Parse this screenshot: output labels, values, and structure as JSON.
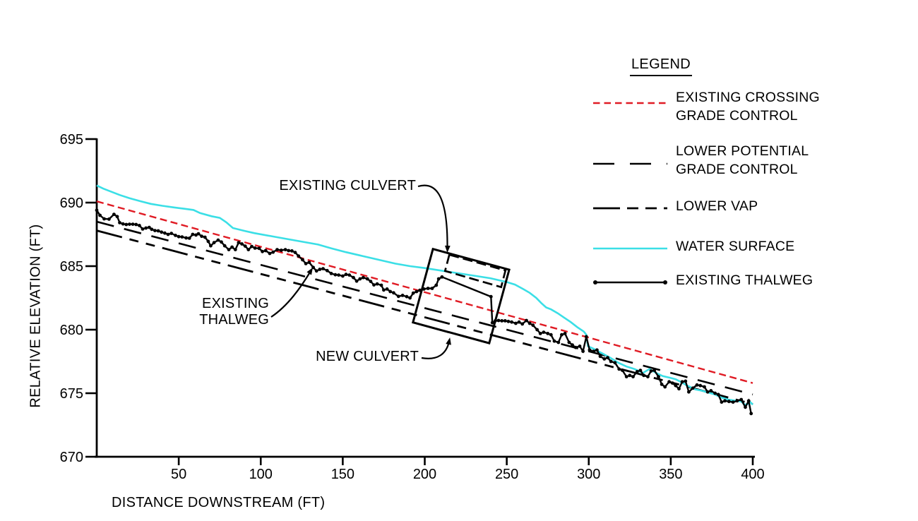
{
  "palette": {
    "red": "#e01b24",
    "cyan": "#3bdfe6",
    "ink": "#000000",
    "background": "#ffffff"
  },
  "chart_data": {
    "type": "line",
    "title": "",
    "xlabel": "DISTANCE DOWNSTREAM (FT)",
    "ylabel": "RELATIVE ELEVATION (FT)",
    "xlim": [
      0,
      400
    ],
    "ylim": [
      670,
      695
    ],
    "xticks": [
      50,
      100,
      150,
      200,
      250,
      300,
      350,
      400
    ],
    "yticks": [
      670,
      675,
      680,
      685,
      690,
      695
    ],
    "grid": false,
    "legend": {
      "title": "LEGEND",
      "position": "top-right",
      "items": [
        {
          "id": "existing-crossing-grade-control",
          "lines": [
            "EXISTING CROSSING",
            "GRADE CONTROL"
          ],
          "style": "red-dash"
        },
        {
          "id": "lower-potential-grade-control",
          "lines": [
            "LOWER POTENTIAL",
            "GRADE CONTROL"
          ],
          "style": "long-dash"
        },
        {
          "id": "lower-vap",
          "lines": [
            "LOWER VAP"
          ],
          "style": "vap-dash"
        },
        {
          "id": "water-surface",
          "lines": [
            "WATER SURFACE"
          ],
          "style": "solid-cyan"
        },
        {
          "id": "existing-thalweg",
          "lines": [
            "EXISTING THALWEG"
          ],
          "style": "solid-marker"
        }
      ]
    },
    "series": [
      {
        "id": "existing-crossing-grade-control",
        "name": "EXISTING CROSSING GRADE CONTROL",
        "style": "red-dash",
        "color": "#e01b24",
        "points": [
          [
            0,
            690.1
          ],
          [
            400,
            675.8
          ]
        ]
      },
      {
        "id": "lower-potential-grade-control",
        "name": "LOWER POTENTIAL GRADE CONTROL",
        "style": "long-dash",
        "color": "#000000",
        "points": [
          [
            0,
            688.5
          ],
          [
            400,
            674.9
          ]
        ]
      },
      {
        "id": "lower-vap",
        "name": "LOWER VAP",
        "style": "vap-dash",
        "color": "#000000",
        "points": [
          [
            0,
            687.8
          ],
          [
            400,
            674.15
          ]
        ]
      },
      {
        "id": "water-surface",
        "name": "WATER SURFACE",
        "style": "solid-cyan",
        "color": "#3bdfe6",
        "points": [
          [
            0,
            691.35
          ],
          [
            4,
            691.1
          ],
          [
            9,
            690.85
          ],
          [
            14,
            690.6
          ],
          [
            20,
            690.35
          ],
          [
            27,
            690.1
          ],
          [
            33,
            689.9
          ],
          [
            40,
            689.75
          ],
          [
            47,
            689.62
          ],
          [
            53,
            689.52
          ],
          [
            59,
            689.42
          ],
          [
            63,
            689.18
          ],
          [
            70,
            688.93
          ],
          [
            75,
            688.8
          ],
          [
            79,
            688.45
          ],
          [
            83,
            688.0
          ],
          [
            90,
            687.78
          ],
          [
            96,
            687.6
          ],
          [
            109,
            687.3
          ],
          [
            122,
            687.0
          ],
          [
            135,
            686.7
          ],
          [
            143,
            686.4
          ],
          [
            152,
            686.1
          ],
          [
            162,
            685.8
          ],
          [
            172,
            685.5
          ],
          [
            182,
            685.2
          ],
          [
            191,
            685.0
          ],
          [
            200,
            684.85
          ],
          [
            210,
            684.65
          ],
          [
            220,
            684.45
          ],
          [
            230,
            684.25
          ],
          [
            240,
            684.05
          ],
          [
            250,
            683.75
          ],
          [
            255,
            683.55
          ],
          [
            260,
            683.2
          ],
          [
            264,
            682.9
          ],
          [
            268,
            682.5
          ],
          [
            271,
            682.1
          ],
          [
            274,
            681.75
          ],
          [
            277,
            681.6
          ],
          [
            281,
            681.3
          ],
          [
            285,
            680.95
          ],
          [
            289,
            680.6
          ],
          [
            293,
            680.2
          ],
          [
            297,
            679.85
          ],
          [
            298.5,
            679.6
          ],
          [
            299.5,
            678.7
          ],
          [
            303,
            678.5
          ],
          [
            308,
            678.15
          ],
          [
            313,
            677.8
          ],
          [
            318,
            677.4
          ],
          [
            323,
            677.1
          ],
          [
            328,
            676.9
          ],
          [
            333,
            676.6
          ],
          [
            337,
            676.9
          ],
          [
            341,
            676.6
          ],
          [
            345,
            676.35
          ],
          [
            350,
            676.2
          ],
          [
            353,
            676.1
          ],
          [
            356,
            675.9
          ],
          [
            360,
            675.6
          ],
          [
            365,
            675.3
          ],
          [
            369,
            675.2
          ],
          [
            373,
            675.05
          ],
          [
            377,
            674.9
          ],
          [
            381,
            674.65
          ],
          [
            385,
            674.5
          ],
          [
            389,
            674.42
          ],
          [
            393,
            674.35
          ],
          [
            395,
            674.1
          ],
          [
            397,
            674.15
          ],
          [
            398.5,
            674.3
          ],
          [
            400,
            674.1
          ]
        ]
      },
      {
        "id": "existing-thalweg",
        "name": "EXISTING THALWEG",
        "style": "solid-marker",
        "color": "#000000",
        "markers": true,
        "points": [
          [
            0,
            689.4
          ],
          [
            2,
            689.0
          ],
          [
            4.5,
            688.72
          ],
          [
            7.5,
            688.7
          ],
          [
            10.5,
            689.08
          ],
          [
            12.5,
            688.9
          ],
          [
            14,
            688.42
          ],
          [
            16,
            688.32
          ],
          [
            18,
            688.28
          ],
          [
            20,
            688.3
          ],
          [
            22,
            688.3
          ],
          [
            24,
            688.28
          ],
          [
            26,
            688.2
          ],
          [
            28,
            687.92
          ],
          [
            30,
            688.0
          ],
          [
            32,
            688.05
          ],
          [
            33.5,
            687.9
          ],
          [
            35.5,
            687.8
          ],
          [
            37.5,
            687.78
          ],
          [
            39.5,
            687.68
          ],
          [
            41.5,
            687.6
          ],
          [
            43.5,
            687.5
          ],
          [
            45.5,
            687.58
          ],
          [
            48,
            687.42
          ],
          [
            50,
            687.32
          ],
          [
            52,
            687.3
          ],
          [
            54.5,
            687.22
          ],
          [
            56.5,
            687.2
          ],
          [
            58.5,
            687.5
          ],
          [
            60.5,
            687.45
          ],
          [
            62,
            687.55
          ],
          [
            64,
            687.35
          ],
          [
            66,
            687.28
          ],
          [
            68,
            686.95
          ],
          [
            69.5,
            686.6
          ],
          [
            71.5,
            686.85
          ],
          [
            74,
            687.05
          ],
          [
            76,
            686.9
          ],
          [
            78,
            686.6
          ],
          [
            80.5,
            686.3
          ],
          [
            82.5,
            686.5
          ],
          [
            84.5,
            686.3
          ],
          [
            86.5,
            686.85
          ],
          [
            88.5,
            686.75
          ],
          [
            90.5,
            686.58
          ],
          [
            92.5,
            686.3
          ],
          [
            94.5,
            686.55
          ],
          [
            96.5,
            686.42
          ],
          [
            99,
            686.4
          ],
          [
            101,
            686.15
          ],
          [
            103,
            686.22
          ],
          [
            105.5,
            686.0
          ],
          [
            107.5,
            686.1
          ],
          [
            110,
            686.3
          ],
          [
            112.5,
            686.25
          ],
          [
            115,
            686.3
          ],
          [
            117,
            686.22
          ],
          [
            119,
            686.2
          ],
          [
            121,
            686.08
          ],
          [
            123,
            685.8
          ],
          [
            125.5,
            685.5
          ],
          [
            127.5,
            685.2
          ],
          [
            129.5,
            685.3
          ],
          [
            132,
            684.9
          ],
          [
            134,
            684.62
          ],
          [
            136,
            684.75
          ],
          [
            138,
            684.8
          ],
          [
            140.5,
            684.65
          ],
          [
            143,
            684.42
          ],
          [
            145.5,
            684.32
          ],
          [
            147.5,
            684.3
          ],
          [
            150,
            684.22
          ],
          [
            152,
            684.35
          ],
          [
            154,
            684.3
          ],
          [
            156.5,
            684.1
          ],
          [
            158.5,
            683.82
          ],
          [
            160.5,
            684.0
          ],
          [
            162.5,
            684.1
          ],
          [
            165,
            684.0
          ],
          [
            167,
            683.8
          ],
          [
            169,
            683.52
          ],
          [
            171,
            683.6
          ],
          [
            173.5,
            683.5
          ],
          [
            175,
            683.12
          ],
          [
            177,
            683.2
          ],
          [
            179,
            683.0
          ],
          [
            181,
            682.9
          ],
          [
            184,
            682.62
          ],
          [
            186.5,
            682.7
          ],
          [
            189,
            682.6
          ],
          [
            191,
            682.5
          ],
          [
            193,
            682.88
          ],
          [
            195,
            683.0
          ],
          [
            197,
            683.1
          ],
          [
            199.5,
            683.2
          ],
          [
            202,
            683.25
          ],
          [
            204.5,
            683.25
          ],
          [
            207,
            683.5
          ],
          [
            208.5,
            684.0
          ],
          [
            210.5,
            684.15
          ],
          [
            240.4,
            682.6
          ],
          [
            241.2,
            680.55
          ],
          [
            243,
            680.7
          ],
          [
            245,
            680.72
          ],
          [
            247,
            680.7
          ],
          [
            249,
            680.7
          ],
          [
            251,
            680.65
          ],
          [
            253,
            680.6
          ],
          [
            255.5,
            680.5
          ],
          [
            257.5,
            680.6
          ],
          [
            259.5,
            680.45
          ],
          [
            262,
            680.72
          ],
          [
            264,
            680.5
          ],
          [
            266,
            680.35
          ],
          [
            268.5,
            680.0
          ],
          [
            270.5,
            679.7
          ],
          [
            272.5,
            679.8
          ],
          [
            275,
            679.7
          ],
          [
            277,
            679.6
          ],
          [
            279,
            679.1
          ],
          [
            281.5,
            679.0
          ],
          [
            283.5,
            679.6
          ],
          [
            285.5,
            679.7
          ],
          [
            288,
            679.0
          ],
          [
            290,
            678.8
          ],
          [
            292,
            678.6
          ],
          [
            294.5,
            678.7
          ],
          [
            296.5,
            678.3
          ],
          [
            298.5,
            679.45
          ],
          [
            300.5,
            678.4
          ],
          [
            303,
            678.3
          ],
          [
            305,
            678.4
          ],
          [
            307,
            677.9
          ],
          [
            309.5,
            677.7
          ],
          [
            311.5,
            677.8
          ],
          [
            313.5,
            677.5
          ],
          [
            316,
            677.4
          ],
          [
            318.5,
            676.9
          ],
          [
            320.5,
            676.8
          ],
          [
            323,
            676.3
          ],
          [
            325,
            676.4
          ],
          [
            327,
            676.3
          ],
          [
            329.5,
            676.7
          ],
          [
            331.5,
            676.8
          ],
          [
            333.5,
            676.4
          ],
          [
            336,
            676.3
          ],
          [
            338,
            676.75
          ],
          [
            340,
            676.8
          ],
          [
            342.5,
            676.3
          ],
          [
            344.5,
            675.7
          ],
          [
            346.5,
            675.5
          ],
          [
            349,
            675.9
          ],
          [
            351,
            675.8
          ],
          [
            353,
            675.6
          ],
          [
            355,
            675.35
          ],
          [
            357,
            675.9
          ],
          [
            359,
            675.95
          ],
          [
            361,
            675.1
          ],
          [
            363.5,
            675.4
          ],
          [
            366,
            675.65
          ],
          [
            368,
            675.6
          ],
          [
            370.5,
            675.5
          ],
          [
            372.5,
            675.1
          ],
          [
            374.5,
            675.2
          ],
          [
            377,
            675.0
          ],
          [
            379,
            674.9
          ],
          [
            381,
            674.3
          ],
          [
            383,
            674.4
          ],
          [
            385.5,
            674.35
          ],
          [
            388,
            674.3
          ],
          [
            390.5,
            674.4
          ],
          [
            393,
            674.5
          ],
          [
            395.5,
            673.9
          ],
          [
            397.5,
            674.4
          ],
          [
            399,
            673.4
          ]
        ]
      }
    ],
    "shapes": [
      {
        "id": "new-culvert-box",
        "label": "NEW CULVERT",
        "style": "solid",
        "points": [
          [
            205,
            686.35
          ],
          [
            251.5,
            684.72
          ],
          [
            239.3,
            678.94
          ],
          [
            192.8,
            680.57
          ]
        ]
      },
      {
        "id": "existing-culvert-box",
        "label": "EXISTING CULVERT",
        "style": "dashed",
        "points": [
          [
            215.0,
            685.9
          ],
          [
            249.2,
            684.66
          ],
          [
            246.6,
            683.35
          ],
          [
            212.4,
            684.62
          ]
        ]
      }
    ],
    "annotations": {
      "existing_culvert": {
        "text": "EXISTING CULVERT"
      },
      "existing_thalweg": {
        "lines": [
          "EXISTING",
          "THALWEG"
        ]
      },
      "new_culvert": {
        "text": "NEW CULVERT"
      }
    }
  }
}
